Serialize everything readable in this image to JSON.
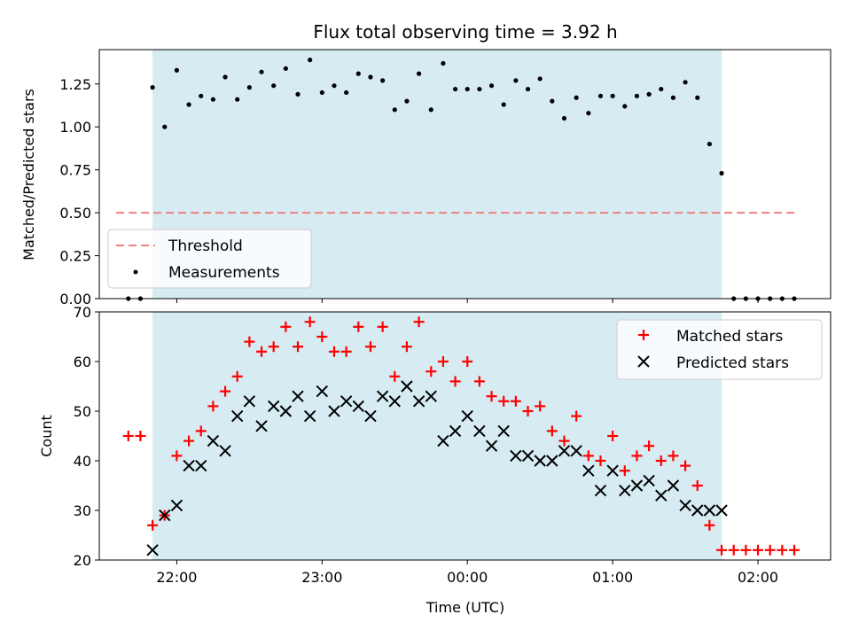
{
  "chart_data": [
    {
      "type": "scatter",
      "title": "Flux total observing time = 3.92 h",
      "ylabel": "Matched/Predicted stars",
      "xlabel": "",
      "ylim": [
        0,
        1.45
      ],
      "xlim": [
        "21:28",
        "02:30"
      ],
      "yticks": [
        0.0,
        0.25,
        0.5,
        0.75,
        1.0,
        1.25
      ],
      "ytick_labels": [
        "0.00",
        "0.25",
        "0.50",
        "0.75",
        "1.00",
        "1.25"
      ],
      "observing_window": [
        "21:50",
        "01:45"
      ],
      "shade_color": "#add8e6",
      "legend_position": "lower-left",
      "threshold": {
        "name": "Threshold",
        "y": 0.5,
        "x_range": [
          "21:35",
          "02:15"
        ],
        "color": "#f08080",
        "style": "dashed"
      },
      "series": [
        {
          "name": "Measurements",
          "color": "#000000",
          "marker": "dot",
          "x": [
            "21:40",
            "21:45",
            "21:50",
            "21:55",
            "22:00",
            "22:05",
            "22:10",
            "22:15",
            "22:20",
            "22:25",
            "22:30",
            "22:35",
            "22:40",
            "22:45",
            "22:50",
            "22:55",
            "23:00",
            "23:05",
            "23:10",
            "23:15",
            "23:20",
            "23:25",
            "23:30",
            "23:35",
            "23:40",
            "23:45",
            "23:50",
            "23:55",
            "00:00",
            "00:05",
            "00:10",
            "00:15",
            "00:20",
            "00:25",
            "00:30",
            "00:35",
            "00:40",
            "00:45",
            "00:50",
            "00:55",
            "01:00",
            "01:05",
            "01:10",
            "01:15",
            "01:20",
            "01:25",
            "01:30",
            "01:35",
            "01:40",
            "01:45",
            "01:50",
            "01:55",
            "02:00",
            "02:05",
            "02:10",
            "02:15"
          ],
          "y": [
            0.0,
            0.0,
            1.23,
            1.0,
            1.33,
            1.13,
            1.18,
            1.16,
            1.29,
            1.16,
            1.23,
            1.32,
            1.24,
            1.34,
            1.19,
            1.39,
            1.2,
            1.24,
            1.2,
            1.31,
            1.29,
            1.27,
            1.1,
            1.15,
            1.31,
            1.1,
            1.37,
            1.22,
            1.22,
            1.22,
            1.24,
            1.13,
            1.27,
            1.22,
            1.28,
            1.15,
            1.05,
            1.17,
            1.08,
            1.18,
            1.18,
            1.12,
            1.18,
            1.19,
            1.22,
            1.17,
            1.26,
            1.17,
            0.9,
            0.73,
            0.0,
            0.0,
            0.0,
            0.0,
            0.0,
            0.0
          ]
        }
      ]
    },
    {
      "type": "scatter",
      "title": "",
      "ylabel": "Count",
      "xlabel": "Time (UTC)",
      "ylim": [
        20,
        70
      ],
      "xlim": [
        "21:28",
        "02:30"
      ],
      "yticks": [
        20,
        30,
        40,
        50,
        60,
        70
      ],
      "xticks": [
        "22:00",
        "23:00",
        "00:00",
        "01:00",
        "02:00"
      ],
      "observing_window": [
        "21:50",
        "01:45"
      ],
      "shade_color": "#add8e6",
      "legend_position": "top-right",
      "series": [
        {
          "name": "Matched stars",
          "color": "#ff0000",
          "marker": "plus",
          "x": [
            "21:40",
            "21:45",
            "21:50",
            "21:55",
            "22:00",
            "22:05",
            "22:10",
            "22:15",
            "22:20",
            "22:25",
            "22:30",
            "22:35",
            "22:40",
            "22:45",
            "22:50",
            "22:55",
            "23:00",
            "23:05",
            "23:10",
            "23:15",
            "23:20",
            "23:25",
            "23:30",
            "23:35",
            "23:40",
            "23:45",
            "23:50",
            "23:55",
            "00:00",
            "00:05",
            "00:10",
            "00:15",
            "00:20",
            "00:25",
            "00:30",
            "00:35",
            "00:40",
            "00:45",
            "00:50",
            "00:55",
            "01:00",
            "01:05",
            "01:10",
            "01:15",
            "01:20",
            "01:25",
            "01:30",
            "01:35",
            "01:40",
            "01:45",
            "01:50",
            "01:55",
            "02:00",
            "02:05",
            "02:10",
            "02:15"
          ],
          "y": [
            45,
            45,
            27,
            29,
            41,
            44,
            46,
            51,
            54,
            57,
            64,
            62,
            63,
            67,
            63,
            68,
            65,
            62,
            62,
            67,
            63,
            67,
            57,
            63,
            68,
            58,
            60,
            56,
            60,
            56,
            53,
            52,
            52,
            50,
            51,
            46,
            44,
            49,
            41,
            40,
            45,
            38,
            41,
            43,
            40,
            41,
            39,
            35,
            27,
            22,
            22,
            22,
            22,
            22,
            22,
            22
          ]
        },
        {
          "name": "Predicted stars",
          "color": "#000000",
          "marker": "x",
          "x": [
            "21:50",
            "21:55",
            "22:00",
            "22:05",
            "22:10",
            "22:15",
            "22:20",
            "22:25",
            "22:30",
            "22:35",
            "22:40",
            "22:45",
            "22:50",
            "22:55",
            "23:00",
            "23:05",
            "23:10",
            "23:15",
            "23:20",
            "23:25",
            "23:30",
            "23:35",
            "23:40",
            "23:45",
            "23:50",
            "23:55",
            "00:00",
            "00:05",
            "00:10",
            "00:15",
            "00:20",
            "00:25",
            "00:30",
            "00:35",
            "00:40",
            "00:45",
            "00:50",
            "00:55",
            "01:00",
            "01:05",
            "01:10",
            "01:15",
            "01:20",
            "01:25",
            "01:30",
            "01:35",
            "01:40",
            "01:45"
          ],
          "y": [
            22,
            29,
            31,
            39,
            39,
            44,
            42,
            49,
            52,
            47,
            51,
            50,
            53,
            49,
            54,
            50,
            52,
            51,
            49,
            53,
            52,
            55,
            52,
            53,
            44,
            46,
            49,
            46,
            43,
            46,
            41,
            41,
            40,
            40,
            42,
            42,
            38,
            34,
            38,
            34,
            35,
            36,
            33,
            35,
            31,
            30,
            30,
            30
          ]
        }
      ]
    }
  ]
}
